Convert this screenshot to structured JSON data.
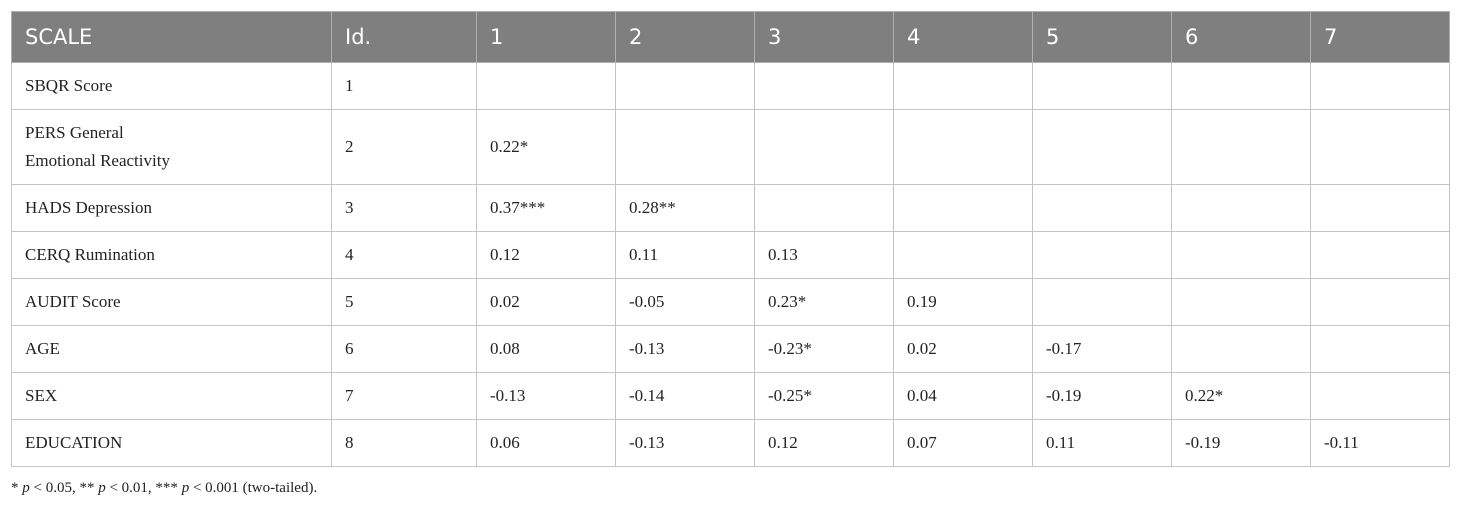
{
  "table": {
    "header": [
      "SCALE",
      "Id.",
      "1",
      "2",
      "3",
      "4",
      "5",
      "6",
      "7"
    ],
    "rows": [
      [
        "SBQR Score",
        "1"
      ],
      [
        "PERS General\nEmotional Reactivity",
        "2",
        "0.22*"
      ],
      [
        "HADS Depression",
        "3",
        "0.37***",
        "0.28**"
      ],
      [
        "CERQ Rumination",
        "4",
        "0.12",
        "0.11",
        "0.13"
      ],
      [
        "AUDIT Score",
        "5",
        "0.02",
        "-0.05",
        "0.23*",
        "0.19"
      ],
      [
        "AGE",
        "6",
        "0.08",
        "-0.13",
        "-0.23*",
        "0.02",
        "-0.17"
      ],
      [
        "SEX",
        "7",
        "-0.13",
        "-0.14",
        "-0.25*",
        "0.04",
        "-0.19",
        "0.22*"
      ],
      [
        "EDUCATION",
        "8",
        "0.06",
        "-0.13",
        "0.12",
        "0.07",
        "0.11",
        "-0.19",
        "-0.11"
      ]
    ]
  },
  "footnote": [
    "* ",
    "p",
    " < 0.05, ** ",
    "p",
    " < 0.01, *** ",
    "p",
    " < 0.001 (two-tailed)."
  ]
}
